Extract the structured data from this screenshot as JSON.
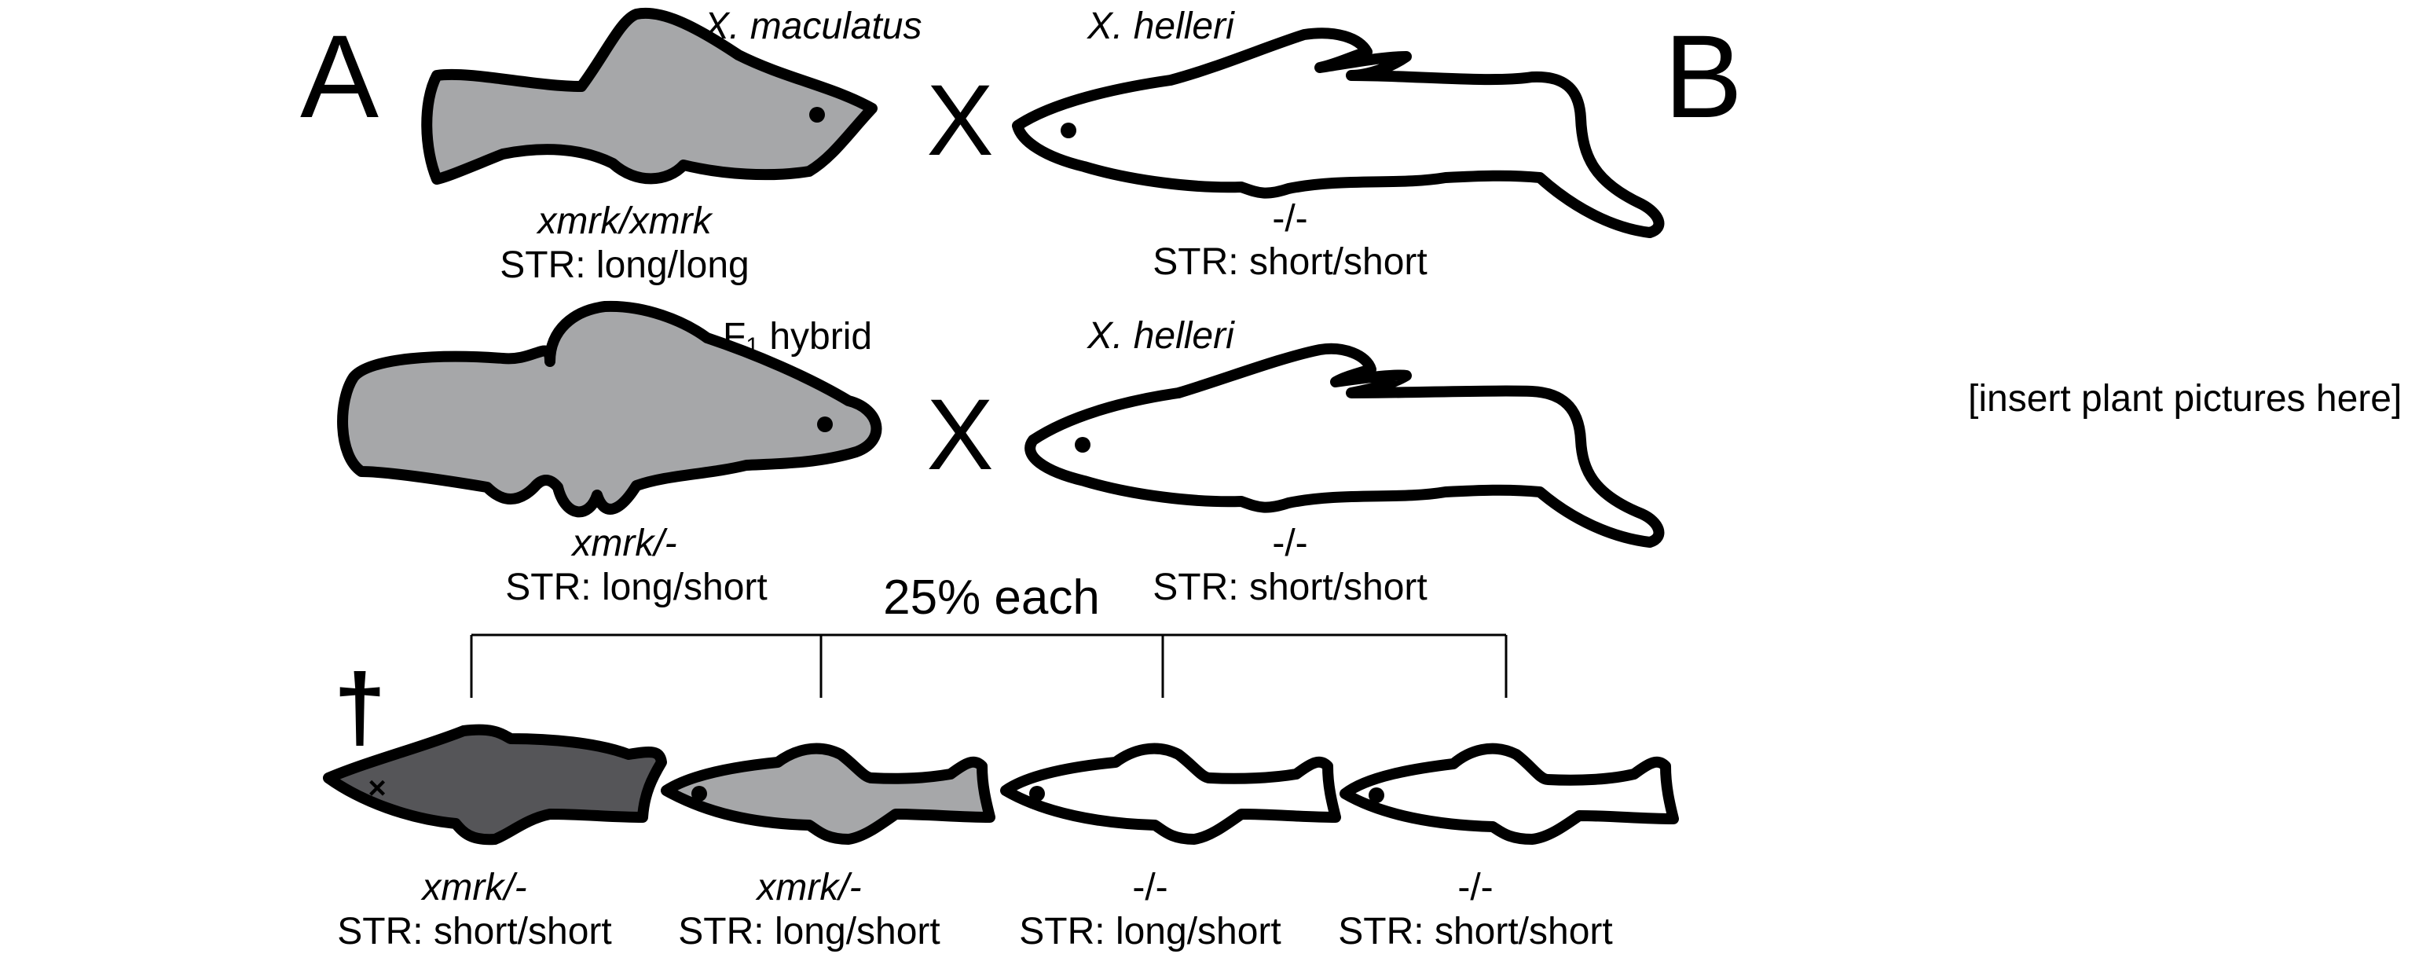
{
  "panels": {
    "a": "A",
    "b": "B"
  },
  "cross_symbol": "X",
  "parents_row1": {
    "left": {
      "species": "X. maculatus",
      "genotype": "xmrk/xmrk",
      "str": "STR: long/long",
      "fill": "#a6a7a9"
    },
    "right": {
      "species": "X. helleri",
      "genotype": "-/-",
      "str": "STR: short/short",
      "fill": "#ffffff"
    }
  },
  "parents_row2": {
    "left": {
      "species_main": "F",
      "species_sub": "1",
      "species_rest": " hybrid",
      "genotype": "xmrk/-",
      "str": "STR: long/short",
      "fill": "#a6a7a9"
    },
    "right": {
      "species": "X. helleri",
      "genotype": "-/-",
      "str": "STR: short/short",
      "fill": "#ffffff"
    }
  },
  "offspring_ratio": "25% each",
  "offspring": [
    {
      "genotype": "xmrk/-",
      "str": "STR: short/short",
      "fill": "#555558",
      "dead": true,
      "dead_mark": "†"
    },
    {
      "genotype": "xmrk/-",
      "str": "STR: long/short",
      "fill": "#a6a7a9",
      "dead": false
    },
    {
      "genotype": "-/-",
      "str": "STR: long/short",
      "fill": "#ffffff",
      "dead": false
    },
    {
      "genotype": "-/-",
      "str": "STR: short/short",
      "fill": "#ffffff",
      "dead": false
    }
  ],
  "panel_b_placeholder": "[insert plant pictures here]",
  "colors": {
    "outline": "#000000",
    "hybrid_grey": "#a6a7a9",
    "dark_grey": "#555558",
    "white": "#ffffff"
  }
}
